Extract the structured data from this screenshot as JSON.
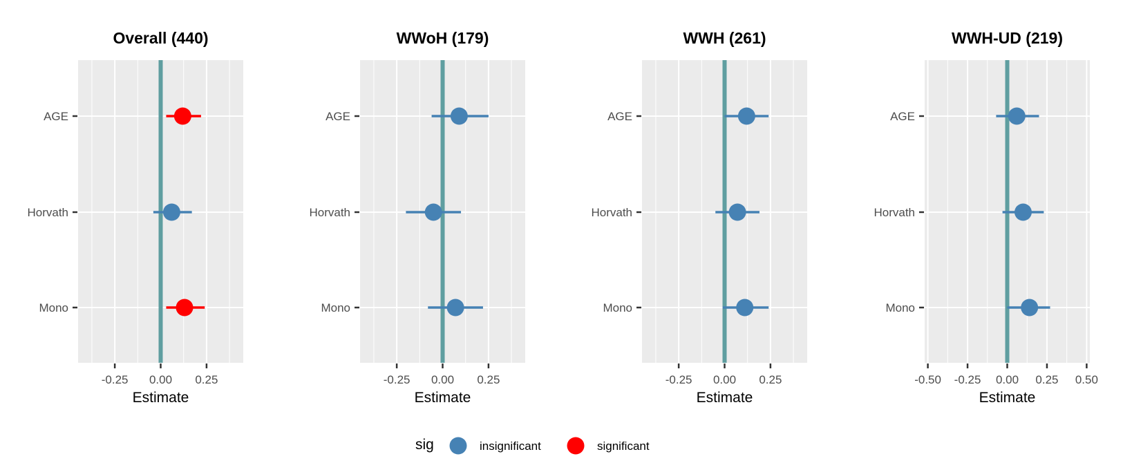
{
  "chart_data": {
    "type": "forest",
    "categories": [
      "AGE",
      "Horvath",
      "Mono"
    ],
    "xlabel": "Estimate",
    "reference_line": 0,
    "colors": {
      "insignificant": "#4682B4",
      "significant": "#FF0000",
      "reference_line": "#5F9EA0",
      "panel_background": "#EBEBEB",
      "grid": "#FFFFFF"
    },
    "legend": {
      "title": "sig",
      "position": "bottom",
      "entries": [
        {
          "label": "insignificant",
          "color": "#4682B4"
        },
        {
          "label": "significant",
          "color": "#FF0000"
        }
      ]
    },
    "panels": [
      {
        "title": "Overall (440)",
        "xlim": [
          -0.45,
          0.45
        ],
        "ticks": [
          -0.25,
          0,
          0.25
        ],
        "tick_labels": [
          "-0.25",
          "0.00",
          "0.25"
        ],
        "rows": [
          {
            "category": "AGE",
            "estimate": 0.12,
            "lo": 0.03,
            "hi": 0.22,
            "sig": "significant"
          },
          {
            "category": "Horvath",
            "estimate": 0.06,
            "lo": -0.04,
            "hi": 0.17,
            "sig": "insignificant"
          },
          {
            "category": "Mono",
            "estimate": 0.13,
            "lo": 0.03,
            "hi": 0.24,
            "sig": "significant"
          }
        ]
      },
      {
        "title": "WWoH (179)",
        "xlim": [
          -0.45,
          0.45
        ],
        "ticks": [
          -0.25,
          0,
          0.25
        ],
        "tick_labels": [
          "-0.25",
          "0.00",
          "0.25"
        ],
        "rows": [
          {
            "category": "AGE",
            "estimate": 0.09,
            "lo": -0.06,
            "hi": 0.25,
            "sig": "insignificant"
          },
          {
            "category": "Horvath",
            "estimate": -0.05,
            "lo": -0.2,
            "hi": 0.1,
            "sig": "insignificant"
          },
          {
            "category": "Mono",
            "estimate": 0.07,
            "lo": -0.08,
            "hi": 0.22,
            "sig": "insignificant"
          }
        ]
      },
      {
        "title": "WWH (261)",
        "xlim": [
          -0.45,
          0.45
        ],
        "ticks": [
          -0.25,
          0,
          0.25
        ],
        "tick_labels": [
          "-0.25",
          "0.00",
          "0.25"
        ],
        "rows": [
          {
            "category": "AGE",
            "estimate": 0.12,
            "lo": 0.0,
            "hi": 0.24,
            "sig": "insignificant"
          },
          {
            "category": "Horvath",
            "estimate": 0.07,
            "lo": -0.05,
            "hi": 0.19,
            "sig": "insignificant"
          },
          {
            "category": "Mono",
            "estimate": 0.11,
            "lo": -0.01,
            "hi": 0.24,
            "sig": "insignificant"
          }
        ]
      },
      {
        "title": "WWH-UD (219)",
        "xlim": [
          -0.52,
          0.52
        ],
        "ticks": [
          -0.5,
          -0.25,
          0,
          0.25,
          0.5
        ],
        "tick_labels": [
          "-0.50",
          "-0.25",
          "0.00",
          "0.25",
          "0.50"
        ],
        "rows": [
          {
            "category": "AGE",
            "estimate": 0.06,
            "lo": -0.07,
            "hi": 0.2,
            "sig": "insignificant"
          },
          {
            "category": "Horvath",
            "estimate": 0.1,
            "lo": -0.03,
            "hi": 0.23,
            "sig": "insignificant"
          },
          {
            "category": "Mono",
            "estimate": 0.14,
            "lo": 0.0,
            "hi": 0.27,
            "sig": "insignificant"
          }
        ]
      }
    ]
  }
}
